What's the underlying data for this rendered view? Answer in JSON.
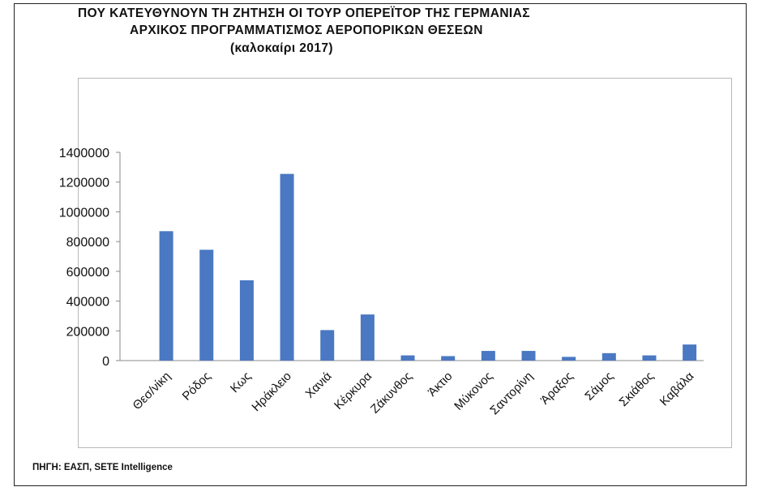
{
  "chart_data": {
    "type": "bar",
    "title_lines": [
      "ΠΟΥ ΚΑΤΕΥΘΥΝΟΥΝ ΤΗ ΖΗΤΗΣΗ ΟΙ ΤΟΥΡ ΟΠΕΡΕΪΤΟΡ ΤΗΣ ΓΕΡΜΑΝΙΑΣ",
      "ΑΡΧΙΚΟΣ ΠΡΟΓΡΑΜΜΑΤΙΣΜΟΣ ΑΕΡΟΠΟΡΙΚΩΝ ΘΕΣΕΩΝ",
      "(καλοκαίρι  2017)"
    ],
    "categories": [
      "Θεσ/νίκη",
      "Ρόδος",
      "Κως",
      "Ηράκλειο",
      "Χανιά",
      "Κέρκυρα",
      "Ζάκυνθος",
      "Άκτιο",
      "Μύκονος",
      "Σαντορίνη",
      "Άραξος",
      "Σάμος",
      "Σκιάθος",
      "Καβάλα"
    ],
    "values": [
      870000,
      745000,
      540000,
      1255000,
      205000,
      310000,
      35000,
      30000,
      65000,
      65000,
      25000,
      50000,
      35000,
      108000
    ],
    "yticks": [
      "0",
      "200000",
      "400000",
      "600000",
      "800000",
      "1000000",
      "1200000",
      "1400000"
    ],
    "ylim": [
      0,
      1400000
    ],
    "bar_color": "#4a78c2",
    "grid": false,
    "legend": "none",
    "source": "ΠΗΓΗ: ΕΑΣΠ, SETE Intelligence"
  }
}
